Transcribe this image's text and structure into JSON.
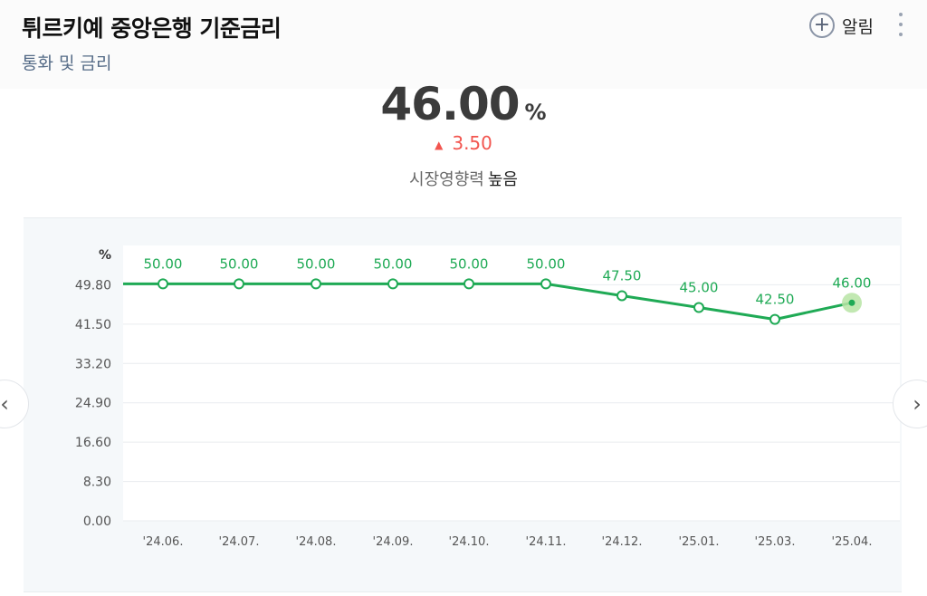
{
  "header": {
    "title": "튀르키예 중앙은행 기준금리",
    "category": "통화 및 금리",
    "alert_label": "알림"
  },
  "icons": {
    "plus": "+",
    "prev": "‹",
    "next": "›",
    "up": "▲"
  },
  "summary": {
    "value": "46.00",
    "unit": "%",
    "change": "3.50",
    "impact_label": "시장영향력",
    "impact_level": "높음"
  },
  "colors": {
    "line": "#1faa55",
    "up": "#f2554f",
    "last_point_halo": "#b7e4a4"
  },
  "chart_data": {
    "type": "line",
    "ylabel": "%",
    "y_ticks": [
      "0.00",
      "8.30",
      "16.60",
      "24.90",
      "33.20",
      "41.50",
      "49.80"
    ],
    "ylim": [
      0,
      58.1
    ],
    "categories": [
      "'24.06.",
      "'24.07.",
      "'24.08.",
      "'24.09.",
      "'24.10.",
      "'24.11.",
      "'24.12.",
      "'25.01.",
      "'25.03.",
      "'25.04."
    ],
    "values": [
      50.0,
      50.0,
      50.0,
      50.0,
      50.0,
      50.0,
      47.5,
      45.0,
      42.5,
      46.0
    ],
    "value_labels": [
      "50.00",
      "50.00",
      "50.00",
      "50.00",
      "50.00",
      "50.00",
      "47.50",
      "45.00",
      "42.50",
      "46.00"
    ],
    "grid": true
  }
}
